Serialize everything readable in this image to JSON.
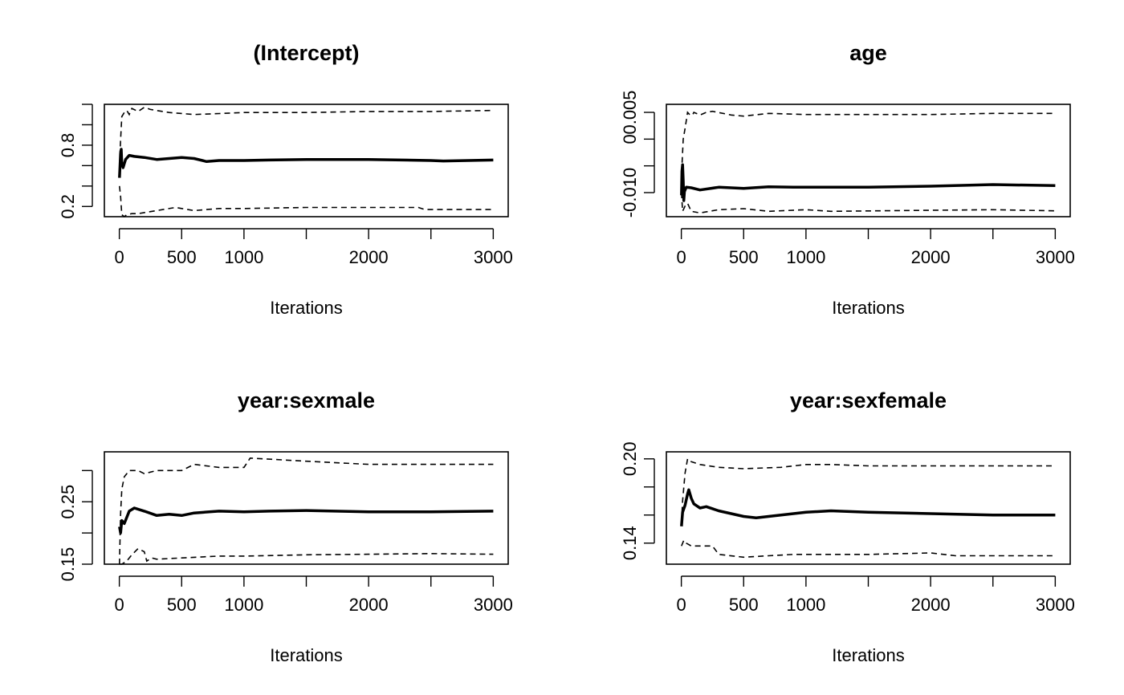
{
  "panels": [
    {
      "title": "(Intercept)",
      "xlabel": "Iterations",
      "ylim": [
        0.1,
        1.2
      ],
      "y_ticks": [
        0.2,
        0.4,
        0.6,
        0.8,
        1.0,
        1.2
      ],
      "y_tick_labels": [
        "0.2",
        "",
        "",
        "0.8",
        "",
        ""
      ],
      "lines": {
        "mean": [
          [
            1,
            0.48
          ],
          [
            5,
            0.58
          ],
          [
            10,
            0.72
          ],
          [
            15,
            0.76
          ],
          [
            20,
            0.62
          ],
          [
            30,
            0.58
          ],
          [
            50,
            0.66
          ],
          [
            80,
            0.7
          ],
          [
            120,
            0.69
          ],
          [
            200,
            0.68
          ],
          [
            300,
            0.66
          ],
          [
            400,
            0.67
          ],
          [
            500,
            0.68
          ],
          [
            600,
            0.67
          ],
          [
            700,
            0.64
          ],
          [
            800,
            0.65
          ],
          [
            1000,
            0.65
          ],
          [
            1200,
            0.655
          ],
          [
            1500,
            0.66
          ],
          [
            2000,
            0.66
          ],
          [
            2500,
            0.65
          ],
          [
            2600,
            0.645
          ],
          [
            3000,
            0.655
          ]
        ],
        "upper": [
          [
            1,
            0.6
          ],
          [
            10,
            0.85
          ],
          [
            20,
            1.08
          ],
          [
            40,
            1.12
          ],
          [
            60,
            1.14
          ],
          [
            80,
            1.1
          ],
          [
            100,
            1.16
          ],
          [
            150,
            1.13
          ],
          [
            200,
            1.17
          ],
          [
            250,
            1.15
          ],
          [
            400,
            1.12
          ],
          [
            600,
            1.1
          ],
          [
            800,
            1.11
          ],
          [
            1000,
            1.12
          ],
          [
            1500,
            1.12
          ],
          [
            2000,
            1.13
          ],
          [
            2500,
            1.13
          ],
          [
            3000,
            1.14
          ]
        ],
        "lower": [
          [
            1,
            0.4
          ],
          [
            10,
            0.3
          ],
          [
            20,
            0.12
          ],
          [
            40,
            0.1
          ],
          [
            60,
            0.12
          ],
          [
            100,
            0.13
          ],
          [
            150,
            0.13
          ],
          [
            200,
            0.14
          ],
          [
            300,
            0.16
          ],
          [
            450,
            0.19
          ],
          [
            500,
            0.18
          ],
          [
            600,
            0.16
          ],
          [
            700,
            0.17
          ],
          [
            800,
            0.18
          ],
          [
            1000,
            0.18
          ],
          [
            1500,
            0.19
          ],
          [
            2000,
            0.19
          ],
          [
            2400,
            0.19
          ],
          [
            2450,
            0.17
          ],
          [
            3000,
            0.17
          ]
        ]
      }
    },
    {
      "title": "age",
      "xlabel": "Iterations",
      "ylim": [
        -0.0145,
        0.0065
      ],
      "y_ticks": [
        -0.01,
        -0.005,
        0.0,
        0.005
      ],
      "y_tick_labels": [
        "-0.010",
        "",
        "0",
        "0.005"
      ],
      "lines": {
        "mean": [
          [
            1,
            -0.0105
          ],
          [
            5,
            -0.006
          ],
          [
            10,
            -0.0048
          ],
          [
            15,
            -0.0078
          ],
          [
            20,
            -0.0115
          ],
          [
            25,
            -0.0098
          ],
          [
            40,
            -0.009
          ],
          [
            80,
            -0.0091
          ],
          [
            150,
            -0.0095
          ],
          [
            300,
            -0.009
          ],
          [
            500,
            -0.0092
          ],
          [
            700,
            -0.0089
          ],
          [
            900,
            -0.009
          ],
          [
            1500,
            -0.009
          ],
          [
            2000,
            -0.0088
          ],
          [
            2500,
            -0.0085
          ],
          [
            3000,
            -0.0087
          ]
        ],
        "upper": [
          [
            1,
            -0.008
          ],
          [
            5,
            -0.005
          ],
          [
            15,
            0.0
          ],
          [
            30,
            0.002
          ],
          [
            50,
            0.005
          ],
          [
            70,
            0.0045
          ],
          [
            90,
            0.0045
          ],
          [
            100,
            0.005
          ],
          [
            150,
            0.0045
          ],
          [
            200,
            0.005
          ],
          [
            250,
            0.0052
          ],
          [
            400,
            0.0045
          ],
          [
            500,
            0.0043
          ],
          [
            700,
            0.0048
          ],
          [
            1000,
            0.0046
          ],
          [
            1500,
            0.0046
          ],
          [
            2000,
            0.0046
          ],
          [
            2500,
            0.0048
          ],
          [
            3000,
            0.0048
          ]
        ],
        "lower": [
          [
            1,
            -0.01
          ],
          [
            10,
            -0.0135
          ],
          [
            30,
            -0.0125
          ],
          [
            50,
            -0.012
          ],
          [
            80,
            -0.0135
          ],
          [
            150,
            -0.0138
          ],
          [
            300,
            -0.0132
          ],
          [
            500,
            -0.013
          ],
          [
            700,
            -0.0135
          ],
          [
            1000,
            -0.0132
          ],
          [
            1200,
            -0.0135
          ],
          [
            2000,
            -0.0133
          ],
          [
            2500,
            -0.0132
          ],
          [
            3000,
            -0.0134
          ]
        ]
      }
    },
    {
      "title": "year:sexmale",
      "xlabel": "Iterations",
      "ylim": [
        0.15,
        0.33
      ],
      "y_ticks": [
        0.15,
        0.2,
        0.25,
        0.3
      ],
      "y_tick_labels": [
        "0.15",
        "",
        "0.25",
        ""
      ],
      "lines": {
        "mean": [
          [
            1,
            0.21
          ],
          [
            10,
            0.2
          ],
          [
            20,
            0.22
          ],
          [
            40,
            0.215
          ],
          [
            80,
            0.235
          ],
          [
            120,
            0.24
          ],
          [
            200,
            0.235
          ],
          [
            300,
            0.228
          ],
          [
            400,
            0.23
          ],
          [
            500,
            0.228
          ],
          [
            600,
            0.232
          ],
          [
            800,
            0.235
          ],
          [
            1000,
            0.234
          ],
          [
            1200,
            0.235
          ],
          [
            1500,
            0.236
          ],
          [
            2000,
            0.234
          ],
          [
            2500,
            0.234
          ],
          [
            3000,
            0.235
          ]
        ],
        "upper": [
          [
            1,
            0.15
          ],
          [
            10,
            0.23
          ],
          [
            20,
            0.27
          ],
          [
            40,
            0.29
          ],
          [
            80,
            0.3
          ],
          [
            150,
            0.3
          ],
          [
            200,
            0.295
          ],
          [
            300,
            0.3
          ],
          [
            500,
            0.3
          ],
          [
            600,
            0.31
          ],
          [
            800,
            0.305
          ],
          [
            1000,
            0.305
          ],
          [
            1050,
            0.32
          ],
          [
            1500,
            0.315
          ],
          [
            2000,
            0.31
          ],
          [
            2500,
            0.31
          ],
          [
            3000,
            0.31
          ]
        ],
        "lower": [
          [
            1,
            0.15
          ],
          [
            20,
            0.15
          ],
          [
            60,
            0.155
          ],
          [
            100,
            0.165
          ],
          [
            150,
            0.175
          ],
          [
            200,
            0.17
          ],
          [
            220,
            0.155
          ],
          [
            260,
            0.16
          ],
          [
            300,
            0.158
          ],
          [
            500,
            0.16
          ],
          [
            800,
            0.163
          ],
          [
            1000,
            0.163
          ],
          [
            1500,
            0.165
          ],
          [
            2000,
            0.166
          ],
          [
            2500,
            0.167
          ],
          [
            3000,
            0.166
          ]
        ]
      }
    },
    {
      "title": "year:sexfemale",
      "xlabel": "Iterations",
      "ylim": [
        0.125,
        0.205
      ],
      "y_ticks": [
        0.14,
        0.16,
        0.18,
        0.2
      ],
      "y_tick_labels": [
        "0.14",
        "",
        "",
        "0.20"
      ],
      "lines": {
        "mean": [
          [
            1,
            0.152
          ],
          [
            10,
            0.162
          ],
          [
            30,
            0.167
          ],
          [
            50,
            0.175
          ],
          [
            60,
            0.178
          ],
          [
            80,
            0.172
          ],
          [
            100,
            0.168
          ],
          [
            150,
            0.165
          ],
          [
            200,
            0.166
          ],
          [
            300,
            0.163
          ],
          [
            400,
            0.161
          ],
          [
            500,
            0.159
          ],
          [
            600,
            0.158
          ],
          [
            800,
            0.16
          ],
          [
            1000,
            0.162
          ],
          [
            1200,
            0.163
          ],
          [
            1500,
            0.162
          ],
          [
            2000,
            0.161
          ],
          [
            2500,
            0.16
          ],
          [
            3000,
            0.16
          ]
        ],
        "upper": [
          [
            1,
            0.155
          ],
          [
            10,
            0.17
          ],
          [
            30,
            0.19
          ],
          [
            50,
            0.2
          ],
          [
            80,
            0.198
          ],
          [
            150,
            0.196
          ],
          [
            300,
            0.194
          ],
          [
            500,
            0.193
          ],
          [
            800,
            0.194
          ],
          [
            1000,
            0.196
          ],
          [
            1200,
            0.196
          ],
          [
            1500,
            0.195
          ],
          [
            2000,
            0.195
          ],
          [
            2500,
            0.195
          ],
          [
            3000,
            0.195
          ]
        ],
        "lower": [
          [
            1,
            0.138
          ],
          [
            20,
            0.142
          ],
          [
            40,
            0.14
          ],
          [
            80,
            0.138
          ],
          [
            150,
            0.138
          ],
          [
            250,
            0.138
          ],
          [
            300,
            0.132
          ],
          [
            500,
            0.13
          ],
          [
            700,
            0.131
          ],
          [
            900,
            0.132
          ],
          [
            1200,
            0.132
          ],
          [
            1500,
            0.132
          ],
          [
            2000,
            0.133
          ],
          [
            2200,
            0.131
          ],
          [
            2500,
            0.131
          ],
          [
            3000,
            0.131
          ]
        ]
      }
    }
  ],
  "chart_data": [
    {
      "type": "line",
      "title": "(Intercept)",
      "xlabel": "Iterations",
      "ylabel": "",
      "xlim": [
        0,
        3000
      ],
      "ylim": [
        0.1,
        1.2
      ],
      "x_tick_labels": [
        "0",
        "500",
        "1000",
        "2000",
        "3000"
      ],
      "y_tick_labels": [
        "0.2",
        "0.8"
      ],
      "series_styles": [
        "solid thick (running mean)",
        "dashed (upper quantile)",
        "dashed (lower quantile)"
      ]
    },
    {
      "type": "line",
      "title": "age",
      "xlabel": "Iterations",
      "ylabel": "",
      "xlim": [
        0,
        3000
      ],
      "ylim": [
        -0.0145,
        0.0065
      ],
      "x_tick_labels": [
        "0",
        "500",
        "1000",
        "2000",
        "3000"
      ],
      "y_tick_labels": [
        "-0.010",
        "0",
        "0.005"
      ],
      "series_styles": [
        "solid thick (running mean)",
        "dashed (upper quantile)",
        "dashed (lower quantile)"
      ]
    },
    {
      "type": "line",
      "title": "year:sexmale",
      "xlabel": "Iterations",
      "ylabel": "",
      "xlim": [
        0,
        3000
      ],
      "ylim": [
        0.15,
        0.33
      ],
      "x_tick_labels": [
        "0",
        "500",
        "1000",
        "2000",
        "3000"
      ],
      "y_tick_labels": [
        "0.15",
        "0.25"
      ],
      "series_styles": [
        "solid thick (running mean)",
        "dashed (upper quantile)",
        "dashed (lower quantile)"
      ]
    },
    {
      "type": "line",
      "title": "year:sexfemale",
      "xlabel": "Iterations",
      "ylabel": "",
      "xlim": [
        0,
        3000
      ],
      "ylim": [
        0.125,
        0.205
      ],
      "x_tick_labels": [
        "0",
        "500",
        "1000",
        "2000",
        "3000"
      ],
      "y_tick_labels": [
        "0.14",
        "0.20"
      ],
      "series_styles": [
        "solid thick (running mean)",
        "dashed (upper quantile)",
        "dashed (lower quantile)"
      ]
    }
  ],
  "x_ticks": [
    0,
    500,
    1000,
    1500,
    2000,
    2500,
    3000
  ],
  "x_tick_labels": [
    "0",
    "500",
    "1000",
    "",
    "2000",
    "",
    "3000"
  ],
  "colors": {
    "line": "#000000",
    "background": "#ffffff"
  }
}
